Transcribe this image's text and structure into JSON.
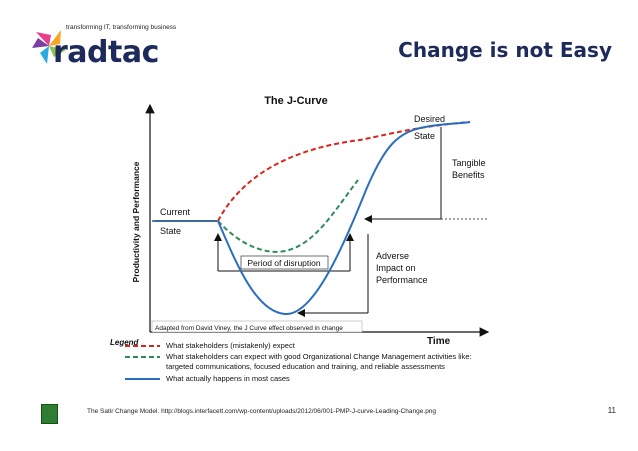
{
  "header": {
    "tagline": "transforming IT, transforming business",
    "wordmark": "radtac",
    "slide_title": "Change is not Easy"
  },
  "diagram": {
    "title": "The J-Curve",
    "y_axis_label": "Productivity and Performance",
    "x_axis_label": "Time",
    "current_state": [
      "Current",
      "State"
    ],
    "desired_state": [
      "Desired",
      "State"
    ],
    "tangible_benefits": [
      "Tangible",
      "Benefits"
    ],
    "adverse_impact": [
      "Adverse",
      "Impact on",
      "Performance"
    ],
    "period_of_disruption": "Period of disruption",
    "attribution": "Adapted from David Viney, the J Curve effect observed in change",
    "legend": {
      "title": "Legend",
      "items": [
        {
          "style": "red-dashed",
          "color": "#d9261c",
          "lines": [
            "What stakeholders (mistakenly) expect"
          ]
        },
        {
          "style": "green-dashed",
          "color": "#2e8b57",
          "lines": [
            "What stakeholders can expect with good Organizational Change Management activities like:",
            "targeted communications, focused education and training, and reliable assessments"
          ]
        },
        {
          "style": "blue-solid",
          "color": "#2a6fbf",
          "lines": [
            "What actually happens in most cases"
          ]
        }
      ]
    }
  },
  "footer": {
    "source": "The Satir Change Model. http://blogs.interfacett.com/wp-content/uploads/2012/06/001-PMP-J-curve-Leading-Change.png",
    "page_number": "11"
  },
  "colors": {
    "brand_navy": "#1d2a5c",
    "expect_red": "#d9261c",
    "ocm_green": "#2e8b57",
    "actual_blue": "#2a6fbf"
  }
}
